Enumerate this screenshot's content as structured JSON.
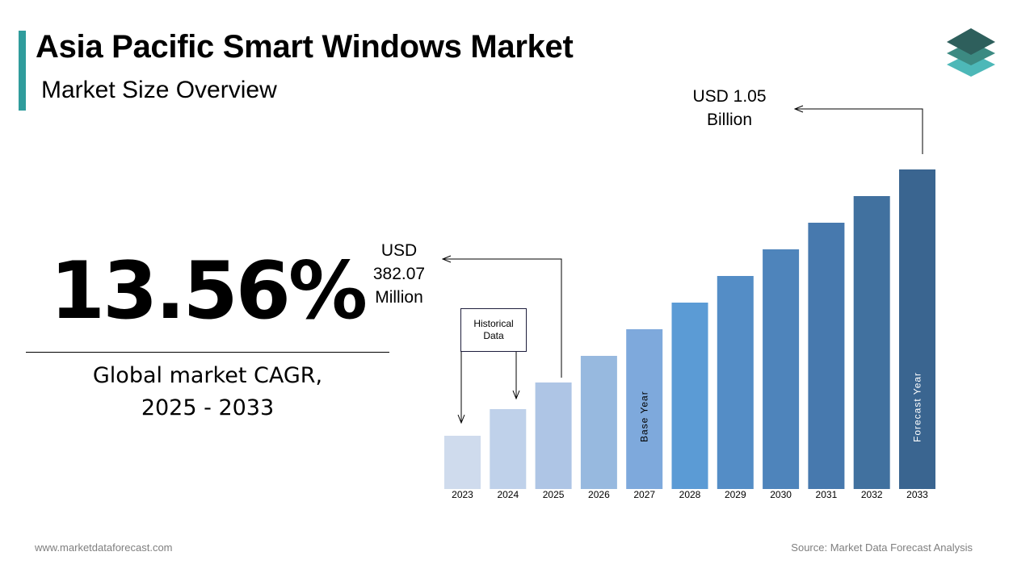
{
  "header": {
    "title": "Asia Pacific Smart Windows Market",
    "subtitle": "Market Size Overview",
    "accent_color": "#2f9c9c"
  },
  "logo": {
    "icon": "stacked-layers-logo-icon",
    "colors": [
      "#2e5f5c",
      "#3c8a82",
      "#4db8b8"
    ]
  },
  "cagr": {
    "value": "13.56%",
    "label_line1": "Global market CAGR,",
    "label_line2": "2025 - 2033"
  },
  "callouts": {
    "start": {
      "line1": "USD",
      "line2": "382.07",
      "line3": "Million"
    },
    "end": {
      "line1": "USD 1.05",
      "line2": "Billion"
    },
    "historical": {
      "line1": "Historical",
      "line2": "Data"
    }
  },
  "chart_data": {
    "type": "bar",
    "categories": [
      "2023",
      "2024",
      "2025",
      "2026",
      "2027",
      "2028",
      "2029",
      "2030",
      "2031",
      "2032",
      "2033"
    ],
    "values": [
      66,
      99,
      132,
      165,
      198,
      231,
      264,
      297,
      330,
      363,
      396
    ],
    "note": "values are relative bar heights (no value axis shown)",
    "bar_labels": [
      {
        "category": "2027",
        "text": "Base Year"
      },
      {
        "category": "2033",
        "text": "Forecast Year"
      }
    ],
    "colors": [
      "#cfdbed",
      "#bfd1ea",
      "#aec5e5",
      "#97b9df",
      "#7ea9dc",
      "#5b9bd5",
      "#548dc6",
      "#4e84bb",
      "#4779ae",
      "#41719f",
      "#3a6590"
    ],
    "grid": false,
    "legend": "none"
  },
  "footer": {
    "website": "www.marketdataforecast.com",
    "source": "Source: Market Data Forecast Analysis"
  }
}
